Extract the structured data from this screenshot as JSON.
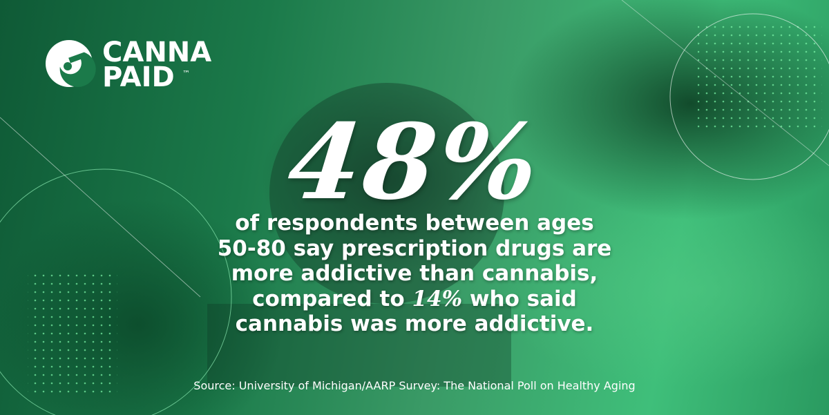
{
  "logo": {
    "line1": "CANNA",
    "line2": "PAID",
    "mark": "™"
  },
  "headline": "48%",
  "body": {
    "lines": [
      [
        "of respondents between ages"
      ],
      [
        "50-80 say prescription drugs are"
      ],
      [
        "more addictive than cannabis,"
      ],
      [
        "compared to ",
        "14%",
        " who said"
      ],
      [
        "cannabis was more addictive."
      ]
    ]
  },
  "source": "Source: University of Michigan/AARP Survey: The National Poll on Healthy Aging"
}
